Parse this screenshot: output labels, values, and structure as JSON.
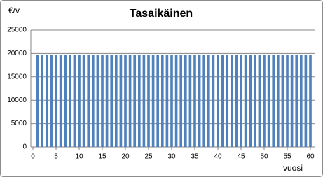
{
  "chart_data": {
    "type": "bar",
    "title": "Tasaikäinen",
    "y_label": "€/v",
    "x_label": "vuosi",
    "x": [
      1,
      2,
      3,
      4,
      5,
      6,
      7,
      8,
      9,
      10,
      11,
      12,
      13,
      14,
      15,
      16,
      17,
      18,
      19,
      20,
      21,
      22,
      23,
      24,
      25,
      26,
      27,
      28,
      29,
      30,
      31,
      32,
      33,
      34,
      35,
      36,
      37,
      38,
      39,
      40,
      41,
      42,
      43,
      44,
      45,
      46,
      47,
      48,
      49,
      50,
      51,
      52,
      53,
      54,
      55,
      56,
      57,
      58,
      59,
      60
    ],
    "values": [
      19700,
      19700,
      19700,
      19700,
      19700,
      19700,
      19700,
      19700,
      19700,
      19700,
      19700,
      19700,
      19700,
      19700,
      19700,
      19700,
      19700,
      19700,
      19700,
      19700,
      19700,
      19700,
      19700,
      19700,
      19700,
      19700,
      19700,
      19700,
      19700,
      19700,
      19700,
      19700,
      19700,
      19700,
      19700,
      19700,
      19700,
      19700,
      19700,
      19700,
      19700,
      19700,
      19700,
      19700,
      19700,
      19700,
      19700,
      19700,
      19700,
      19700,
      19700,
      19700,
      19700,
      19700,
      19700,
      19700,
      19700,
      19700,
      19700,
      19700
    ],
    "color": "#4f81bd",
    "xlim": [
      0,
      60
    ],
    "xticks": [
      0,
      5,
      10,
      15,
      20,
      25,
      30,
      35,
      40,
      45,
      50,
      55,
      60
    ],
    "ylim": [
      0,
      25000
    ],
    "yticks": [
      0,
      5000,
      10000,
      15000,
      20000,
      25000
    ],
    "grid": true
  }
}
